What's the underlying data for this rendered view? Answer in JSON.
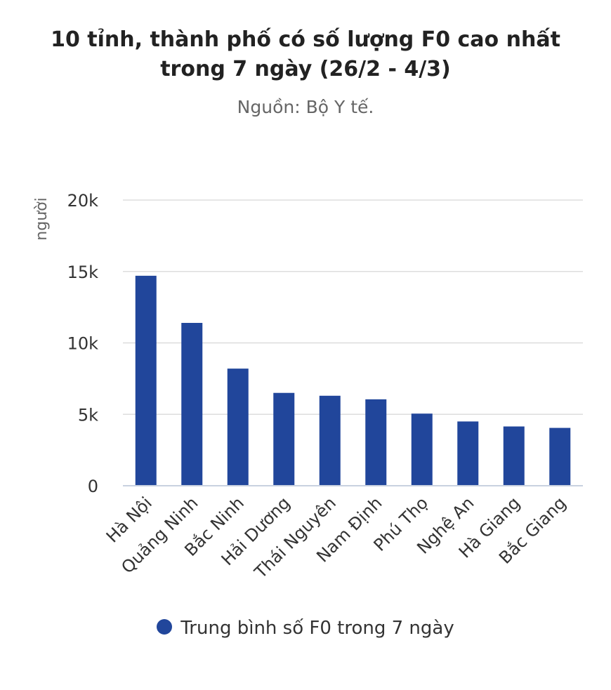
{
  "title_lines": [
    "10 tỉnh, thành phố có số lượng F0 cao nhất",
    "trong 7 ngày (26/2 - 4/3)"
  ],
  "subtitle": "Nguồn: Bộ Y tế.",
  "colors": {
    "bar": "#21469b",
    "grid": "#dddddd",
    "axis": "#c8d1e0",
    "text": "#333333"
  },
  "chart_data": {
    "type": "bar",
    "title": "10 tỉnh, thành phố có số lượng F0 cao nhất trong 7 ngày (26/2 - 4/3)",
    "subtitle": "Nguồn: Bộ Y tế.",
    "xlabel": "",
    "ylabel": "người",
    "ylim": [
      0,
      20000
    ],
    "yticks": [
      0,
      5000,
      10000,
      15000,
      20000
    ],
    "ytick_labels": [
      "0",
      "5k",
      "10k",
      "15k",
      "20k"
    ],
    "grid": true,
    "legend_position": "bottom",
    "categories": [
      "Hà Nội",
      "Quảng Ninh",
      "Bắc Ninh",
      "Hải Dương",
      "Thái Nguyên",
      "Nam Định",
      "Phú Thọ",
      "Nghệ An",
      "Hà Giang",
      "Bắc Giang"
    ],
    "series": [
      {
        "name": "Trung bình số F0 trong 7 ngày",
        "values": [
          14700,
          11400,
          8200,
          6500,
          6300,
          6050,
          5050,
          4500,
          4150,
          4050
        ]
      }
    ]
  }
}
